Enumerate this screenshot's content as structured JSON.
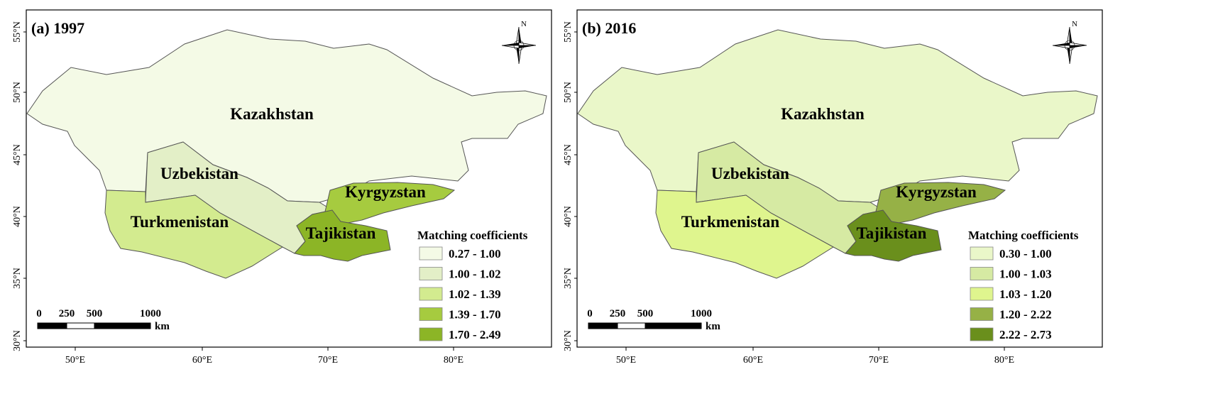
{
  "panels": [
    {
      "id": "a",
      "title": "(a) 1997",
      "colors": {
        "Kazakhstan": "#f4fae6",
        "Uzbekistan": "#e3efc7",
        "Turkmenistan": "#d3eb8f",
        "Kyrgyzstan": "#a6cb3f",
        "Tajikistan": "#8cb526"
      },
      "legend": {
        "title": "Matching coefficients",
        "items": [
          {
            "label": "0.27 - 1.00",
            "color": "#f4fae6"
          },
          {
            "label": "1.00 - 1.02",
            "color": "#e3efc7"
          },
          {
            "label": "1.02 - 1.39",
            "color": "#d3eb8f"
          },
          {
            "label": "1.39 - 1.70",
            "color": "#a6cb3f"
          },
          {
            "label": "1.70 - 2.49",
            "color": "#8cb526"
          }
        ]
      }
    },
    {
      "id": "b",
      "title": "(b) 2016",
      "colors": {
        "Kazakhstan": "#eaf7c9",
        "Uzbekistan": "#d6eaa3",
        "Turkmenistan": "#dff58e",
        "Kyrgyzstan": "#96b146",
        "Tajikistan": "#6a8f1c"
      },
      "legend": {
        "title": "Matching coefficients",
        "items": [
          {
            "label": "0.30 - 1.00",
            "color": "#eaf7c9"
          },
          {
            "label": "1.00 - 1.03",
            "color": "#d6eaa3"
          },
          {
            "label": "1.03 - 1.20",
            "color": "#dff58e"
          },
          {
            "label": "1.20 - 2.22",
            "color": "#96b146"
          },
          {
            "label": "2.22 - 2.73",
            "color": "#6a8f1c"
          }
        ]
      }
    }
  ],
  "countries": [
    "Kazakhstan",
    "Uzbekistan",
    "Turkmenistan",
    "Kyrgyzstan",
    "Tajikistan"
  ],
  "lat_ticks": [
    "55°N",
    "50°N",
    "45°N",
    "40°N",
    "35°N",
    "30°N"
  ],
  "lon_ticks": [
    "50°E",
    "60°E",
    "70°E",
    "80°E"
  ],
  "north_label": "N",
  "scale_bar": {
    "ticks": [
      "0",
      "250",
      "500",
      "1000"
    ],
    "unit": "km"
  }
}
